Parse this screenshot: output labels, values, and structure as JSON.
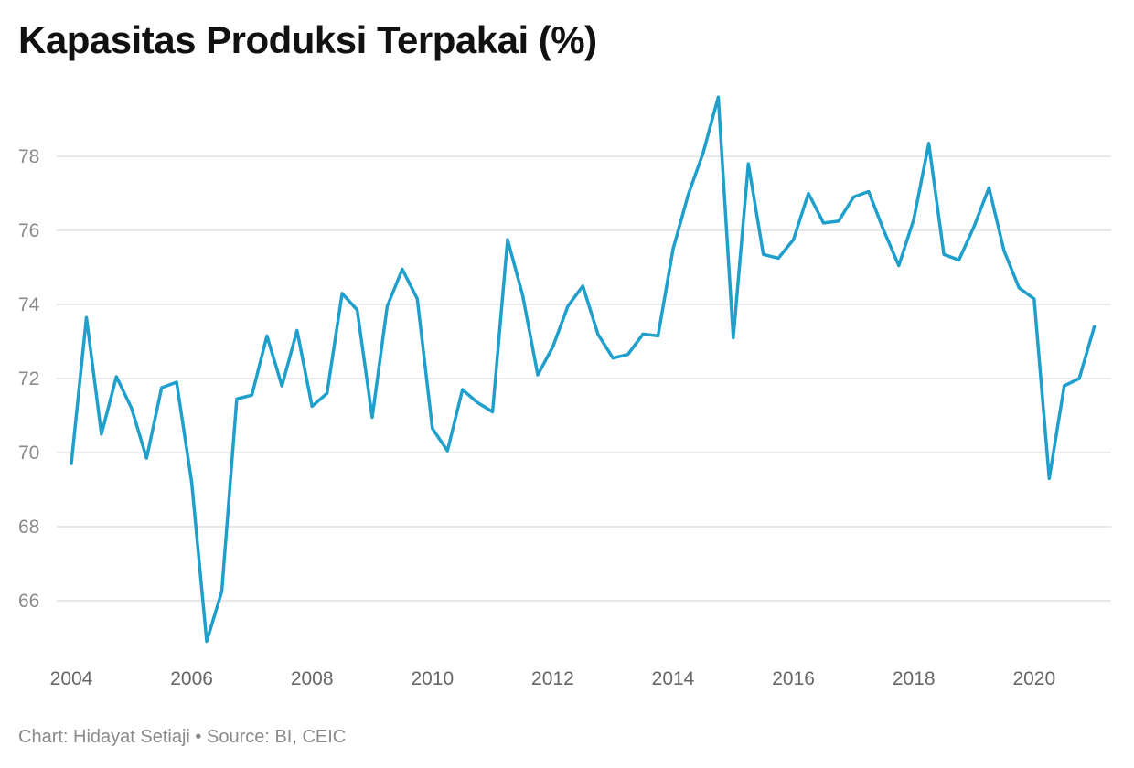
{
  "title": "Kapasitas Produksi Terpakai (%)",
  "footer": "Chart: Hidayat Setiaji • Source: BI, CEIC",
  "colors": {
    "line": "#1f9fcb",
    "grid": "#e1e1e1",
    "axis_text": "#8a8a8a"
  },
  "chart_data": {
    "type": "line",
    "title": "Kapasitas Produksi Terpakai (%)",
    "xlabel": "",
    "ylabel": "",
    "xlim": [
      2004,
      2021.5
    ],
    "ylim": [
      64.8,
      80.0
    ],
    "yticks": [
      66,
      68,
      70,
      72,
      74,
      76,
      78
    ],
    "xticks": [
      2004,
      2006,
      2008,
      2010,
      2012,
      2014,
      2016,
      2018,
      2020
    ],
    "grid": true,
    "series": [
      {
        "values": [
          [
            2004.0,
            69.7
          ],
          [
            2004.25,
            73.65
          ],
          [
            2004.5,
            70.5
          ],
          [
            2004.75,
            72.05
          ],
          [
            2005.0,
            71.2
          ],
          [
            2005.25,
            69.85
          ],
          [
            2005.5,
            71.75
          ],
          [
            2005.75,
            71.9
          ],
          [
            2006.0,
            69.2
          ],
          [
            2006.25,
            64.9
          ],
          [
            2006.5,
            66.25
          ],
          [
            2006.75,
            71.45
          ],
          [
            2007.0,
            71.55
          ],
          [
            2007.25,
            73.15
          ],
          [
            2007.5,
            71.8
          ],
          [
            2007.75,
            73.3
          ],
          [
            2008.0,
            71.25
          ],
          [
            2008.25,
            71.6
          ],
          [
            2008.5,
            74.3
          ],
          [
            2008.75,
            73.85
          ],
          [
            2009.0,
            70.95
          ],
          [
            2009.25,
            73.95
          ],
          [
            2009.5,
            74.95
          ],
          [
            2009.75,
            74.15
          ],
          [
            2010.0,
            70.65
          ],
          [
            2010.25,
            70.05
          ],
          [
            2010.5,
            71.7
          ],
          [
            2010.75,
            71.35
          ],
          [
            2011.0,
            71.1
          ],
          [
            2011.25,
            75.75
          ],
          [
            2011.5,
            74.25
          ],
          [
            2011.75,
            72.1
          ],
          [
            2012.0,
            72.85
          ],
          [
            2012.25,
            73.95
          ],
          [
            2012.5,
            74.5
          ],
          [
            2012.75,
            73.2
          ],
          [
            2013.0,
            72.55
          ],
          [
            2013.25,
            72.65
          ],
          [
            2013.5,
            73.2
          ],
          [
            2013.75,
            73.15
          ],
          [
            2014.0,
            75.5
          ],
          [
            2014.25,
            76.95
          ],
          [
            2014.5,
            78.1
          ],
          [
            2014.75,
            79.6
          ],
          [
            2015.0,
            73.1
          ],
          [
            2015.25,
            77.8
          ],
          [
            2015.5,
            75.35
          ],
          [
            2015.75,
            75.25
          ],
          [
            2016.0,
            75.75
          ],
          [
            2016.25,
            77.0
          ],
          [
            2016.5,
            76.2
          ],
          [
            2016.75,
            76.25
          ],
          [
            2017.0,
            76.9
          ],
          [
            2017.25,
            77.05
          ],
          [
            2017.5,
            76.0
          ],
          [
            2017.75,
            75.05
          ],
          [
            2018.0,
            76.3
          ],
          [
            2018.25,
            78.35
          ],
          [
            2018.5,
            75.35
          ],
          [
            2018.75,
            75.2
          ],
          [
            2019.0,
            76.1
          ],
          [
            2019.25,
            77.15
          ],
          [
            2019.5,
            75.45
          ],
          [
            2019.75,
            74.45
          ],
          [
            2020.0,
            74.15
          ],
          [
            2020.25,
            69.3
          ],
          [
            2020.5,
            71.8
          ],
          [
            2020.75,
            72.0
          ],
          [
            2021.0,
            73.4
          ]
        ]
      }
    ]
  }
}
